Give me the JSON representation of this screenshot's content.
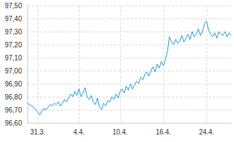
{
  "chart_data": {
    "type": "line",
    "color": "#1f9ad6",
    "grid": true,
    "categories": [
      null,
      null,
      null,
      null,
      null,
      "31.3.",
      null,
      null,
      null,
      null,
      null,
      null,
      null,
      null,
      null,
      null,
      null,
      null,
      null,
      null,
      null,
      null,
      null,
      null,
      null,
      "4.4.",
      null,
      null,
      null,
      null,
      null,
      null,
      null,
      null,
      null,
      null,
      null,
      null,
      null,
      null,
      null,
      null,
      null,
      null,
      null,
      "10.4.",
      null,
      null,
      null,
      null,
      null,
      null,
      null,
      null,
      null,
      null,
      null,
      null,
      null,
      null,
      null,
      null,
      null,
      null,
      null,
      null,
      "16.4.",
      null,
      null,
      null,
      null,
      null,
      null,
      null,
      null,
      null,
      null,
      null,
      null,
      null,
      null,
      null,
      null,
      null,
      null,
      null,
      null,
      "24.4.",
      null,
      null,
      null,
      null,
      null,
      null,
      null,
      null,
      null,
      null,
      null,
      null
    ],
    "values": [
      96.75,
      96.74,
      96.73,
      96.72,
      96.7,
      96.68,
      96.66,
      96.69,
      96.71,
      96.7,
      96.72,
      96.74,
      96.73,
      96.75,
      96.74,
      96.76,
      96.73,
      96.75,
      96.78,
      96.76,
      96.79,
      96.82,
      96.8,
      96.84,
      96.81,
      96.86,
      96.8,
      96.83,
      96.87,
      96.8,
      96.78,
      96.81,
      96.76,
      96.74,
      96.79,
      96.72,
      96.7,
      96.75,
      96.73,
      96.77,
      96.76,
      96.8,
      96.78,
      96.82,
      96.79,
      96.84,
      96.86,
      96.83,
      96.88,
      96.85,
      96.9,
      96.86,
      96.89,
      96.92,
      96.9,
      96.95,
      96.93,
      96.97,
      96.99,
      96.96,
      97.0,
      97.03,
      96.99,
      97.05,
      97.02,
      97.07,
      97.04,
      97.08,
      97.15,
      97.26,
      97.22,
      97.2,
      97.24,
      97.21,
      97.23,
      97.27,
      97.22,
      97.25,
      97.28,
      97.24,
      97.3,
      97.26,
      97.28,
      97.32,
      97.27,
      97.3,
      97.36,
      97.38,
      97.31,
      97.28,
      97.26,
      97.29,
      97.25,
      97.3,
      97.28,
      97.27,
      97.3,
      97.26,
      97.29,
      97.27
    ],
    "ylim": [
      96.6,
      97.5
    ],
    "yticks": [
      {
        "value": 96.6,
        "label": "96,60"
      },
      {
        "value": 96.7,
        "label": "96,70"
      },
      {
        "value": 96.8,
        "label": "96,80"
      },
      {
        "value": 96.9,
        "label": "96,90"
      },
      {
        "value": 97.0,
        "label": "97,00"
      },
      {
        "value": 97.1,
        "label": "97,10"
      },
      {
        "value": 97.2,
        "label": "97,20"
      },
      {
        "value": 97.3,
        "label": "97,30"
      },
      {
        "value": 97.4,
        "label": "97,40"
      },
      {
        "value": 97.5,
        "label": "97,50"
      }
    ]
  }
}
